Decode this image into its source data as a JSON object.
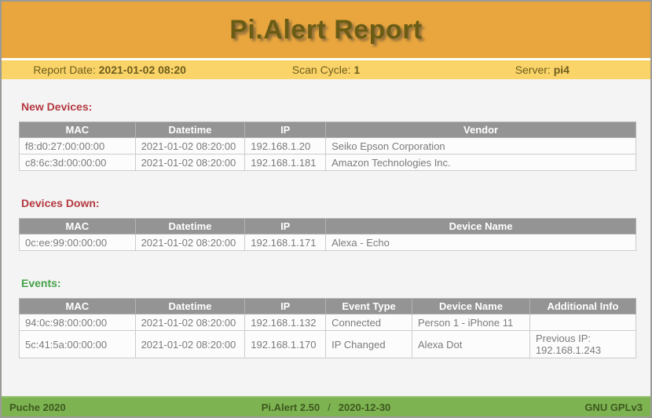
{
  "header": {
    "title": "Pi.Alert Report"
  },
  "meta_bar": {
    "report_date_label": "Report Date: ",
    "report_date_value": "2021-01-02 08:20",
    "scan_cycle_label": "Scan Cycle: ",
    "scan_cycle_value": "1",
    "server_label": "Server: ",
    "server_value": "pi4"
  },
  "sections": [
    {
      "id": "new-devices",
      "heading": "New Devices:",
      "heading_color": "#b4383f",
      "columns": [
        "MAC",
        "Datetime",
        "IP",
        "Vendor"
      ],
      "col_widths": [
        "18.8%",
        "17.8%",
        "13.1%",
        "50.3%"
      ],
      "rows": [
        [
          "f8:d0:27:00:00:00",
          "2021-01-02 08:20:00",
          "192.168.1.20",
          "Seiko Epson Corporation"
        ],
        [
          "c8:6c:3d:00:00:00",
          "2021-01-02 08:20:00",
          "192.168.1.181",
          "Amazon Technologies Inc."
        ]
      ]
    },
    {
      "id": "devices-down",
      "heading": "Devices Down:",
      "heading_color": "#b4383f",
      "columns": [
        "MAC",
        "Datetime",
        "IP",
        "Device Name"
      ],
      "col_widths": [
        "18.8%",
        "17.8%",
        "13.1%",
        "50.3%"
      ],
      "rows": [
        [
          "0c:ee:99:00:00:00",
          "2021-01-02 08:20:00",
          "192.168.1.171",
          "Alexa - Echo"
        ]
      ]
    },
    {
      "id": "events",
      "heading": "Events:",
      "heading_color": "#44a248",
      "columns": [
        "MAC",
        "Datetime",
        "IP",
        "Event Type",
        "Device Name",
        "Additional Info"
      ],
      "col_widths": [
        "18.8%",
        "17.8%",
        "13.1%",
        "14.0%",
        "19.1%",
        "17.2%"
      ],
      "rows": [
        [
          "94:0c:98:00:00:00",
          "2021-01-02 08:20:00",
          "192.168.1.132",
          "Connected",
          "Person 1 - iPhone 11",
          ""
        ],
        [
          "5c:41:5a:00:00:00",
          "2021-01-02 08:20:00",
          "192.168.1.170",
          "IP Changed",
          "Alexa Dot",
          "Previous IP:\n192.168.1.243"
        ]
      ]
    }
  ],
  "footer": {
    "left": "Puche 2020",
    "center_app": "Pi.Alert 2.50",
    "center_sep": "/",
    "center_date": "2020-12-30",
    "right": "GNU GPLv3"
  },
  "colors": {
    "header_bg": "#e9a63e",
    "meta_bar_bg": "#fbd469",
    "title_text": "#6a5c15",
    "section_red": "#b4383f",
    "section_green": "#44a248",
    "table_header_bg": "#949494",
    "footer_bg": "#7db351",
    "footer_text": "#3e5a1f"
  }
}
